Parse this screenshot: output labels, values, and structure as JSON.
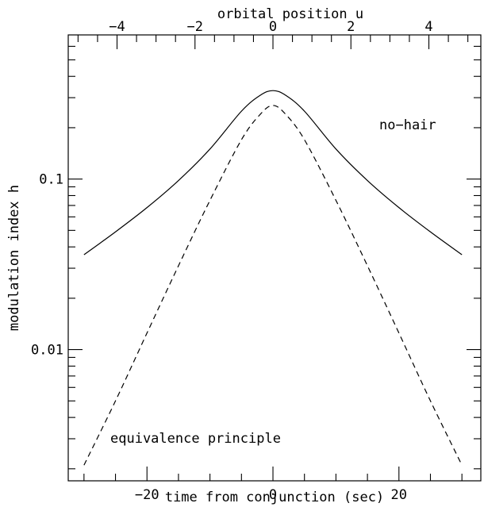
{
  "chart_data": {
    "type": "line",
    "title": "",
    "xlabel": "time from conjunction (sec)",
    "ylabel": "modulation index h",
    "top_xlabel": "orbital position u",
    "xlim": [
      -32.5,
      33
    ],
    "ylim": [
      0.0017,
      0.7
    ],
    "yscale": "log",
    "grid": false,
    "x_ticks": [
      -20,
      0,
      20
    ],
    "x_tick_labels": [
      "−20",
      "0",
      "20"
    ],
    "y_ticks": [
      0.01,
      0.1
    ],
    "y_tick_labels": [
      "0.01",
      "0.1"
    ],
    "top_ticks": [
      -4,
      -2,
      0,
      2,
      4
    ],
    "top_tick_labels": [
      "−4",
      "−2",
      "0",
      "2",
      "4"
    ],
    "top_axis_units_per_x": 0.1616,
    "annotations": [
      "no−hair",
      "equivalence principle"
    ],
    "series": [
      {
        "name": "no−hair",
        "style": "solid",
        "x": [
          -30,
          -25,
          -20,
          -15,
          -10,
          -5,
          -2,
          0,
          2,
          5,
          10,
          15,
          20,
          25,
          30
        ],
        "y": [
          0.036,
          0.049,
          0.068,
          0.098,
          0.15,
          0.25,
          0.31,
          0.33,
          0.31,
          0.25,
          0.15,
          0.098,
          0.068,
          0.049,
          0.036
        ]
      },
      {
        "name": "equivalence principle",
        "style": "dashed",
        "x": [
          -30,
          -25,
          -20,
          -15,
          -10,
          -5,
          -2,
          0,
          2,
          5,
          10,
          15,
          20,
          25,
          30
        ],
        "y": [
          0.0021,
          0.005,
          0.0125,
          0.031,
          0.075,
          0.17,
          0.24,
          0.27,
          0.24,
          0.17,
          0.075,
          0.031,
          0.0125,
          0.005,
          0.0021
        ]
      }
    ]
  }
}
